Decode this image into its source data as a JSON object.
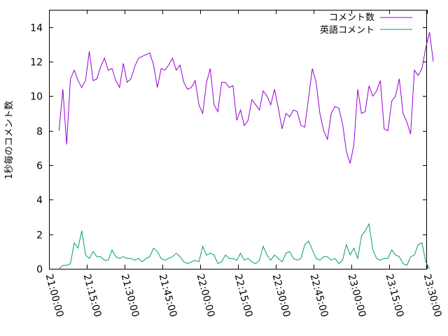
{
  "chart_data": {
    "type": "line",
    "title": "",
    "xlabel": "",
    "ylabel": "1秒毎のコメント数",
    "xlim": [
      "21:00:00",
      "23:30:00"
    ],
    "ylim": [
      0,
      15
    ],
    "x_ticks": [
      "21:00:00",
      "21:15:00",
      "21:30:00",
      "21:45:00",
      "22:00:00",
      "22:15:00",
      "22:30:00",
      "22:45:00",
      "23:00:00",
      "23:15:00",
      "23:30:00"
    ],
    "y_ticks": [
      0,
      2,
      4,
      6,
      8,
      10,
      12,
      14
    ],
    "grid": false,
    "legend": "top-right",
    "series": [
      {
        "name": "コメント数",
        "color": "#9400d3",
        "points": [
          [
            "21:04:00",
            8.0
          ],
          [
            "21:05:30",
            10.4
          ],
          [
            "21:07:00",
            7.2
          ],
          [
            "21:08:30",
            11.0
          ],
          [
            "21:10:00",
            11.5
          ],
          [
            "21:11:30",
            10.9
          ],
          [
            "21:13:00",
            10.5
          ],
          [
            "21:14:30",
            10.9
          ],
          [
            "21:16:00",
            12.6
          ],
          [
            "21:17:30",
            10.9
          ],
          [
            "21:19:00",
            11.0
          ],
          [
            "21:20:30",
            11.7
          ],
          [
            "21:22:00",
            12.2
          ],
          [
            "21:23:30",
            11.5
          ],
          [
            "21:25:00",
            11.6
          ],
          [
            "21:26:30",
            10.9
          ],
          [
            "21:28:00",
            10.5
          ],
          [
            "21:29:30",
            11.9
          ],
          [
            "21:31:00",
            10.8
          ],
          [
            "21:32:30",
            11.0
          ],
          [
            "21:34:00",
            11.7
          ],
          [
            "21:35:30",
            12.2
          ],
          [
            "21:37:00",
            12.3
          ],
          [
            "21:38:30",
            12.4
          ],
          [
            "21:40:00",
            12.5
          ],
          [
            "21:41:30",
            11.8
          ],
          [
            "21:43:00",
            10.5
          ],
          [
            "21:44:30",
            11.6
          ],
          [
            "21:46:00",
            11.5
          ],
          [
            "21:47:30",
            11.8
          ],
          [
            "21:49:00",
            12.2
          ],
          [
            "21:50:30",
            11.5
          ],
          [
            "21:52:00",
            11.8
          ],
          [
            "21:53:30",
            10.8
          ],
          [
            "21:55:00",
            10.4
          ],
          [
            "21:56:30",
            10.5
          ],
          [
            "21:58:00",
            10.9
          ],
          [
            "21:59:30",
            9.5
          ],
          [
            "22:01:00",
            9.0
          ],
          [
            "22:02:30",
            10.8
          ],
          [
            "22:04:00",
            11.6
          ],
          [
            "22:05:30",
            9.5
          ],
          [
            "22:07:00",
            9.1
          ],
          [
            "22:08:30",
            10.8
          ],
          [
            "22:10:00",
            10.8
          ],
          [
            "22:11:30",
            10.5
          ],
          [
            "22:13:00",
            10.6
          ],
          [
            "22:14:30",
            8.6
          ],
          [
            "22:16:00",
            9.2
          ],
          [
            "22:17:30",
            8.3
          ],
          [
            "22:19:00",
            8.6
          ],
          [
            "22:20:30",
            9.8
          ],
          [
            "22:22:00",
            9.5
          ],
          [
            "22:23:30",
            9.2
          ],
          [
            "22:25:00",
            10.3
          ],
          [
            "22:26:30",
            10.0
          ],
          [
            "22:28:00",
            9.5
          ],
          [
            "22:29:30",
            10.4
          ],
          [
            "22:31:00",
            9.3
          ],
          [
            "22:32:30",
            8.1
          ],
          [
            "22:34:00",
            9.0
          ],
          [
            "22:35:30",
            8.8
          ],
          [
            "22:37:00",
            9.2
          ],
          [
            "22:38:30",
            9.1
          ],
          [
            "22:40:00",
            8.3
          ],
          [
            "22:41:30",
            8.2
          ],
          [
            "22:43:00",
            9.9
          ],
          [
            "22:44:30",
            11.6
          ],
          [
            "22:46:00",
            10.8
          ],
          [
            "22:47:30",
            9.0
          ],
          [
            "22:49:00",
            8.0
          ],
          [
            "22:50:30",
            7.5
          ],
          [
            "22:52:00",
            9.0
          ],
          [
            "22:53:30",
            9.4
          ],
          [
            "22:55:00",
            9.3
          ],
          [
            "22:56:30",
            8.4
          ],
          [
            "22:58:00",
            6.8
          ],
          [
            "22:59:30",
            6.1
          ],
          [
            "23:01:00",
            7.2
          ],
          [
            "23:02:30",
            10.4
          ],
          [
            "23:04:00",
            9.0
          ],
          [
            "23:05:30",
            9.1
          ],
          [
            "23:07:00",
            10.6
          ],
          [
            "23:08:30",
            10.0
          ],
          [
            "23:10:00",
            10.3
          ],
          [
            "23:11:30",
            10.9
          ],
          [
            "23:13:00",
            8.1
          ],
          [
            "23:14:30",
            8.0
          ],
          [
            "23:16:00",
            9.7
          ],
          [
            "23:17:30",
            10.0
          ],
          [
            "23:19:00",
            11.0
          ],
          [
            "23:20:30",
            9.0
          ],
          [
            "23:22:00",
            8.5
          ],
          [
            "23:23:30",
            7.8
          ],
          [
            "23:25:00",
            11.5
          ],
          [
            "23:26:30",
            11.2
          ],
          [
            "23:28:00",
            11.6
          ],
          [
            "23:29:30",
            12.8
          ],
          [
            "23:31:00",
            13.7
          ],
          [
            "23:32:30",
            12.0
          ]
        ]
      },
      {
        "name": "英語コメント",
        "color": "#009e73",
        "points": [
          [
            "21:04:00",
            0.0
          ],
          [
            "21:05:30",
            0.2
          ],
          [
            "21:07:00",
            0.2
          ],
          [
            "21:08:30",
            0.3
          ],
          [
            "21:10:00",
            1.5
          ],
          [
            "21:11:30",
            1.2
          ],
          [
            "21:13:00",
            2.2
          ],
          [
            "21:14:30",
            0.8
          ],
          [
            "21:16:00",
            0.6
          ],
          [
            "21:17:30",
            1.0
          ],
          [
            "21:19:00",
            0.7
          ],
          [
            "21:20:30",
            0.7
          ],
          [
            "21:22:00",
            0.5
          ],
          [
            "21:23:30",
            0.5
          ],
          [
            "21:25:00",
            1.1
          ],
          [
            "21:26:30",
            0.7
          ],
          [
            "21:28:00",
            0.6
          ],
          [
            "21:29:30",
            0.7
          ],
          [
            "21:31:00",
            0.6
          ],
          [
            "21:32:30",
            0.6
          ],
          [
            "21:34:00",
            0.5
          ],
          [
            "21:35:30",
            0.6
          ],
          [
            "21:37:00",
            0.4
          ],
          [
            "21:38:30",
            0.6
          ],
          [
            "21:40:00",
            0.7
          ],
          [
            "21:41:30",
            1.2
          ],
          [
            "21:43:00",
            1.0
          ],
          [
            "21:44:30",
            0.6
          ],
          [
            "21:46:00",
            0.5
          ],
          [
            "21:47:30",
            0.6
          ],
          [
            "21:49:00",
            0.7
          ],
          [
            "21:50:30",
            0.9
          ],
          [
            "21:52:00",
            0.7
          ],
          [
            "21:53:30",
            0.4
          ],
          [
            "21:55:00",
            0.3
          ],
          [
            "21:56:30",
            0.4
          ],
          [
            "21:58:00",
            0.5
          ],
          [
            "21:59:30",
            0.4
          ],
          [
            "22:01:00",
            1.3
          ],
          [
            "22:02:30",
            0.8
          ],
          [
            "22:04:00",
            0.9
          ],
          [
            "22:05:30",
            0.8
          ],
          [
            "22:07:00",
            0.3
          ],
          [
            "22:08:30",
            0.4
          ],
          [
            "22:10:00",
            0.8
          ],
          [
            "22:11:30",
            0.6
          ],
          [
            "22:13:00",
            0.6
          ],
          [
            "22:14:30",
            0.5
          ],
          [
            "22:16:00",
            0.9
          ],
          [
            "22:17:30",
            0.5
          ],
          [
            "22:19:00",
            0.6
          ],
          [
            "22:20:30",
            0.4
          ],
          [
            "22:22:00",
            0.3
          ],
          [
            "22:23:30",
            0.5
          ],
          [
            "22:25:00",
            1.3
          ],
          [
            "22:26:30",
            0.8
          ],
          [
            "22:28:00",
            0.5
          ],
          [
            "22:29:30",
            0.8
          ],
          [
            "22:31:00",
            0.6
          ],
          [
            "22:32:30",
            0.4
          ],
          [
            "22:34:00",
            0.9
          ],
          [
            "22:35:30",
            1.0
          ],
          [
            "22:37:00",
            0.6
          ],
          [
            "22:38:30",
            0.5
          ],
          [
            "22:40:00",
            0.6
          ],
          [
            "22:41:30",
            1.4
          ],
          [
            "22:43:00",
            1.6
          ],
          [
            "22:44:30",
            1.1
          ],
          [
            "22:46:00",
            0.6
          ],
          [
            "22:47:30",
            0.5
          ],
          [
            "22:49:00",
            0.7
          ],
          [
            "22:50:30",
            0.7
          ],
          [
            "22:52:00",
            0.5
          ],
          [
            "22:53:30",
            0.6
          ],
          [
            "22:55:00",
            0.3
          ],
          [
            "22:56:30",
            0.5
          ],
          [
            "22:58:00",
            1.4
          ],
          [
            "22:59:30",
            0.8
          ],
          [
            "23:01:00",
            1.2
          ],
          [
            "23:02:30",
            0.6
          ],
          [
            "23:04:00",
            1.9
          ],
          [
            "23:05:30",
            2.2
          ],
          [
            "23:07:00",
            2.6
          ],
          [
            "23:08:30",
            1.1
          ],
          [
            "23:10:00",
            0.6
          ],
          [
            "23:11:30",
            0.5
          ],
          [
            "23:13:00",
            0.6
          ],
          [
            "23:14:30",
            0.6
          ],
          [
            "23:16:00",
            1.1
          ],
          [
            "23:17:30",
            0.8
          ],
          [
            "23:19:00",
            0.7
          ],
          [
            "23:20:30",
            0.3
          ],
          [
            "23:22:00",
            0.2
          ],
          [
            "23:23:30",
            0.7
          ],
          [
            "23:25:00",
            0.8
          ],
          [
            "23:26:30",
            1.4
          ],
          [
            "23:28:00",
            1.5
          ],
          [
            "23:29:30",
            0.4
          ],
          [
            "23:31:00",
            0.0
          ]
        ]
      }
    ]
  }
}
